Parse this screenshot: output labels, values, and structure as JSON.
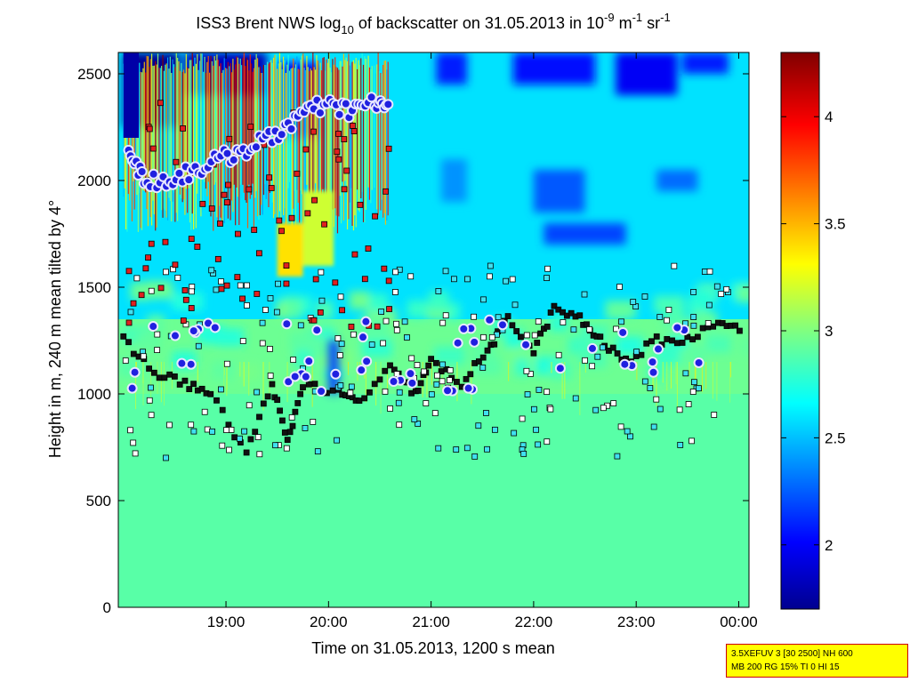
{
  "chart_data": {
    "type": "heatmap",
    "title": {
      "part1": "ISS3 Brent NWS log",
      "sub10": "10",
      "part2": " of backscatter on 31.05.2013 in 10",
      "exp1": "-9",
      "part3": " m",
      "exp2": "-1",
      "part4": " sr",
      "exp3": "-1"
    },
    "xlabel": "Time on 31.05.2013, 1200 s mean",
    "ylabel": "Height in m, 240 m mean tilted by 4°",
    "x_ticks": [
      "19:00",
      "20:00",
      "21:00",
      "22:00",
      "23:00",
      "00:00"
    ],
    "x_tick_hours": [
      19,
      20,
      21,
      22,
      23,
      24
    ],
    "xlim_hours": [
      17.95,
      24.1
    ],
    "y_ticks": [
      "0",
      "500",
      "1000",
      "1500",
      "2000",
      "2500"
    ],
    "y_tick_values": [
      0,
      500,
      1000,
      1500,
      2000,
      2500
    ],
    "ylim": [
      0,
      2600
    ],
    "colorbar": {
      "ticks": [
        "2",
        "2.5",
        "3",
        "3.5",
        "4"
      ],
      "tick_values": [
        2,
        2.5,
        3,
        3.5,
        4
      ],
      "range": [
        1.7,
        4.3
      ],
      "colormap": "jet"
    },
    "layers": {
      "surface_level": 2.9,
      "mid_level": 2.95,
      "upper_level": 2.6
    },
    "aerosol_layer_heights": [
      {
        "t": 18.0,
        "h": 1250
      },
      {
        "t": 18.3,
        "h": 1100
      },
      {
        "t": 18.6,
        "h": 1050
      },
      {
        "t": 18.85,
        "h": 1000
      },
      {
        "t": 19.2,
        "h": 720
      },
      {
        "t": 19.45,
        "h": 1050
      },
      {
        "t": 19.6,
        "h": 770
      },
      {
        "t": 19.75,
        "h": 1050
      },
      {
        "t": 20.1,
        "h": 1000
      },
      {
        "t": 20.3,
        "h": 960
      },
      {
        "t": 20.6,
        "h": 1120
      },
      {
        "t": 20.85,
        "h": 1000
      },
      {
        "t": 21.0,
        "h": 1150
      },
      {
        "t": 21.3,
        "h": 1050
      },
      {
        "t": 21.55,
        "h": 1200
      },
      {
        "t": 21.75,
        "h": 1350
      },
      {
        "t": 22.0,
        "h": 1200
      },
      {
        "t": 22.2,
        "h": 1400
      },
      {
        "t": 22.45,
        "h": 1350
      },
      {
        "t": 22.65,
        "h": 1250
      },
      {
        "t": 22.9,
        "h": 1150
      },
      {
        "t": 23.2,
        "h": 1250
      },
      {
        "t": 23.5,
        "h": 1250
      },
      {
        "t": 23.8,
        "h": 1350
      },
      {
        "t": 24.05,
        "h": 1290
      }
    ],
    "cloud_base_heights": [
      {
        "t": 18.05,
        "h": 2150
      },
      {
        "t": 18.2,
        "h": 2000
      },
      {
        "t": 18.45,
        "h": 2000
      },
      {
        "t": 18.7,
        "h": 2050
      },
      {
        "t": 18.95,
        "h": 2100
      },
      {
        "t": 19.2,
        "h": 2150
      },
      {
        "t": 19.45,
        "h": 2200
      },
      {
        "t": 19.7,
        "h": 2300
      },
      {
        "t": 19.95,
        "h": 2350
      },
      {
        "t": 20.2,
        "h": 2330
      },
      {
        "t": 20.45,
        "h": 2360
      },
      {
        "t": 20.6,
        "h": 2350
      }
    ]
  },
  "info_box": {
    "line1": "3.5XEFUV 3 [30 2500] NH 600",
    "line2": "MB 200 RG 15% TI 0 HI 15"
  }
}
